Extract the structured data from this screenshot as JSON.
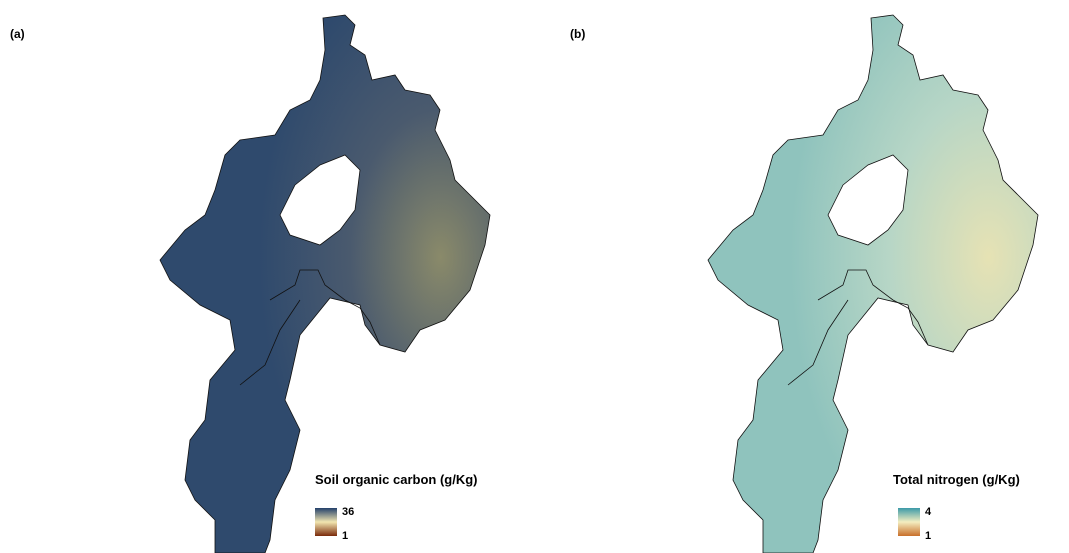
{
  "panels": [
    {
      "label": "(a)",
      "legend": {
        "title": "Soil organic carbon (g/Kg)",
        "max": 36,
        "min": 1
      }
    },
    {
      "label": "(b)",
      "legend": {
        "title": "Total nitrogen (g/Kg)",
        "max": 4,
        "min": 1
      }
    }
  ]
}
